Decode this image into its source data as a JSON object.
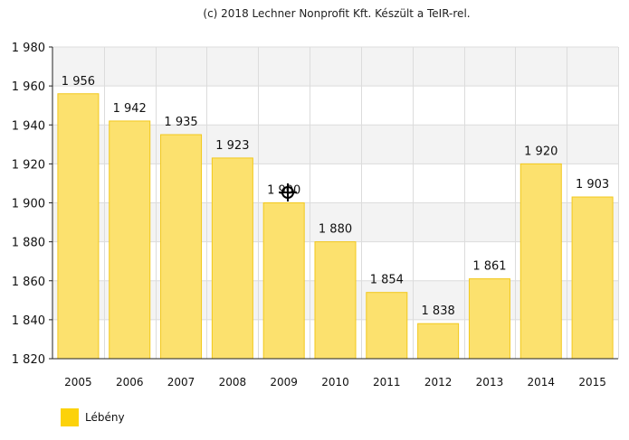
{
  "credit": "(c) 2018 Lechner Nonprofit Kft. Készült a TeIR-rel.",
  "chart_data": {
    "type": "bar",
    "categories": [
      "2005",
      "2006",
      "2007",
      "2008",
      "2009",
      "2010",
      "2011",
      "2012",
      "2013",
      "2014",
      "2015"
    ],
    "series": [
      {
        "name": "Lébény",
        "values": [
          1956,
          1942,
          1935,
          1923,
          1900,
          1880,
          1854,
          1838,
          1861,
          1920,
          1903
        ],
        "labels": [
          "1 956",
          "1 942",
          "1 935",
          "1 923",
          "1 900",
          "1 880",
          "1 854",
          "1 838",
          "1 861",
          "1 920",
          "1 903"
        ],
        "color": "#fce16e",
        "border_color": "#f2c81c"
      }
    ],
    "ylim": [
      1820,
      1980
    ],
    "yticks": [
      1820,
      1840,
      1860,
      1880,
      1900,
      1920,
      1940,
      1960,
      1980
    ],
    "ytick_labels": [
      "1 820",
      "1 840",
      "1 860",
      "1 880",
      "1 900",
      "1 920",
      "1 940",
      "1 960",
      "1 980"
    ],
    "grid": true,
    "legend_position": "bottom-left",
    "legend_color": "#fcd20a"
  }
}
